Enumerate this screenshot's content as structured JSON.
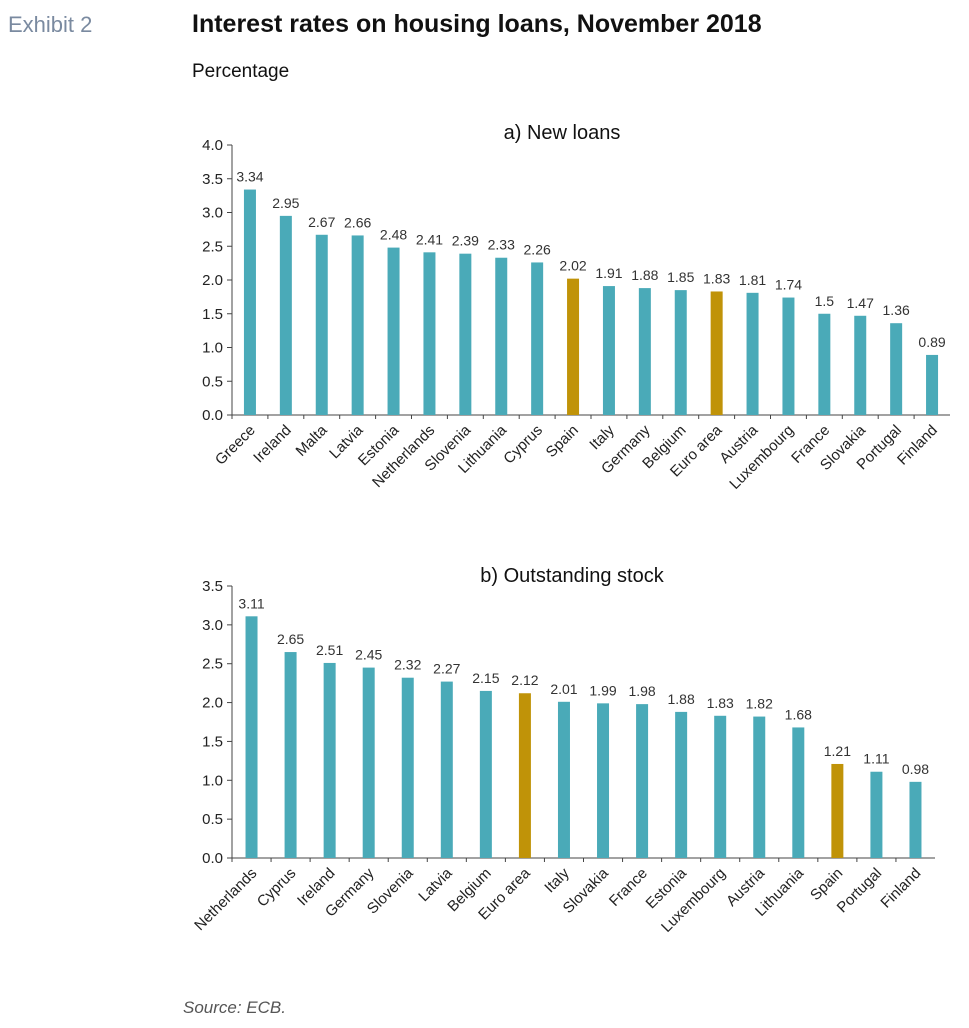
{
  "exhibit_label": "Exhibit 2",
  "title": "Interest rates on housing loans, November 2018",
  "subtitle": "Percentage",
  "source": "Source: ECB.",
  "colors": {
    "bar": "#4aaab8",
    "highlight": "#c09308",
    "axis": "#444444"
  },
  "chart_data": [
    {
      "type": "bar",
      "title": "a) New loans",
      "categories": [
        "Greece",
        "Ireland",
        "Malta",
        "Latvia",
        "Estonia",
        "Netherlands",
        "Slovenia",
        "Lithuania",
        "Cyprus",
        "Spain",
        "Italy",
        "Germany",
        "Belgium",
        "Euro area",
        "Austria",
        "Luxembourg",
        "France",
        "Slovakia",
        "Portugal",
        "Finland"
      ],
      "values": [
        3.34,
        2.95,
        2.67,
        2.66,
        2.48,
        2.41,
        2.39,
        2.33,
        2.26,
        2.02,
        1.91,
        1.88,
        1.85,
        1.83,
        1.81,
        1.74,
        1.5,
        1.47,
        1.36,
        0.89
      ],
      "value_labels": [
        "3.34",
        "2.95",
        "2.67",
        "2.66",
        "2.48",
        "2.41",
        "2.39",
        "2.33",
        "2.26",
        "2.02",
        "1.91",
        "1.88",
        "1.85",
        "1.83",
        "1.81",
        "1.74",
        "1.5",
        "1.47",
        "1.36",
        "0.89"
      ],
      "highlighted": [
        "Spain",
        "Euro area"
      ],
      "ylim": [
        0,
        4.0
      ],
      "yticks": [
        "0.0",
        "0.5",
        "1.0",
        "1.5",
        "2.0",
        "2.5",
        "3.0",
        "3.5",
        "4.0"
      ],
      "grid": false
    },
    {
      "type": "bar",
      "title": "b) Outstanding stock",
      "categories": [
        "Netherlands",
        "Cyprus",
        "Ireland",
        "Germany",
        "Slovenia",
        "Latvia",
        "Belgium",
        "Euro area",
        "Italy",
        "Slovakia",
        "France",
        "Estonia",
        "Luxembourg",
        "Austria",
        "Lithuania",
        "Spain",
        "Portugal",
        "Finland"
      ],
      "values": [
        3.11,
        2.65,
        2.51,
        2.45,
        2.32,
        2.27,
        2.15,
        2.12,
        2.01,
        1.99,
        1.98,
        1.88,
        1.83,
        1.82,
        1.68,
        1.21,
        1.11,
        0.98
      ],
      "value_labels": [
        "3.11",
        "2.65",
        "2.51",
        "2.45",
        "2.32",
        "2.27",
        "2.15",
        "2.12",
        "2.01",
        "1.99",
        "1.98",
        "1.88",
        "1.83",
        "1.82",
        "1.68",
        "1.21",
        "1.11",
        "0.98"
      ],
      "highlighted": [
        "Euro area",
        "Spain"
      ],
      "ylim": [
        0,
        3.5
      ],
      "yticks": [
        "0.0",
        "0.5",
        "1.0",
        "1.5",
        "2.0",
        "2.5",
        "3.0",
        "3.5"
      ],
      "grid": false
    }
  ]
}
